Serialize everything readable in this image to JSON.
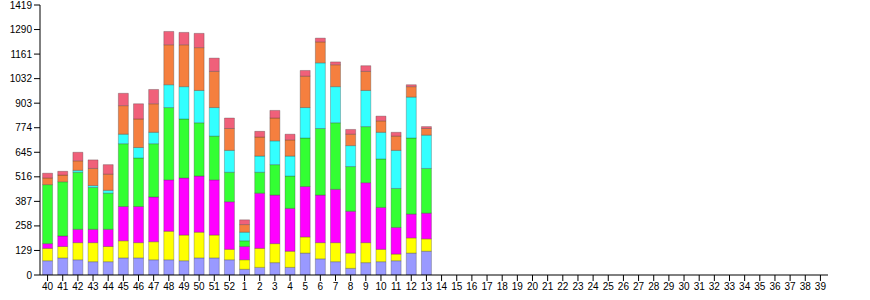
{
  "chart_data": {
    "type": "bar",
    "stacked": true,
    "grid": false,
    "categories": [
      "40",
      "41",
      "42",
      "43",
      "44",
      "45",
      "46",
      "47",
      "48",
      "49",
      "50",
      "51",
      "52",
      "1",
      "2",
      "3",
      "4",
      "5",
      "6",
      "7",
      "8",
      "9",
      "10",
      "11",
      "12",
      "13",
      "14",
      "15",
      "16",
      "17",
      "18",
      "19",
      "20",
      "21",
      "22",
      "23",
      "24",
      "25",
      "26",
      "27",
      "28",
      "29",
      "30",
      "31",
      "32",
      "33",
      "34",
      "35",
      "36",
      "37",
      "38",
      "39"
    ],
    "ylim": [
      0,
      1419
    ],
    "yticks": [
      0,
      129,
      258,
      387,
      516,
      645,
      774,
      903,
      1032,
      1161,
      1290,
      1419
    ],
    "series": [
      {
        "color": "#9999ff",
        "values": [
          75,
          90,
          80,
          70,
          70,
          90,
          90,
          80,
          80,
          75,
          90,
          90,
          80,
          30,
          40,
          65,
          40,
          115,
          85,
          70,
          35,
          65,
          70,
          75,
          115,
          125,
          null,
          null,
          null,
          null,
          null,
          null,
          null,
          null,
          null,
          null,
          null,
          null,
          null,
          null,
          null,
          null,
          null,
          null,
          null,
          null,
          null,
          null,
          null,
          null,
          null,
          null
        ]
      },
      {
        "color": "#ffff00",
        "values": [
          65,
          60,
          90,
          100,
          80,
          90,
          80,
          95,
          150,
          135,
          135,
          120,
          55,
          50,
          100,
          100,
          85,
          85,
          85,
          100,
          80,
          105,
          65,
          35,
          80,
          65,
          null,
          null,
          null,
          null,
          null,
          null,
          null,
          null,
          null,
          null,
          null,
          null,
          null,
          null,
          null,
          null,
          null,
          null,
          null,
          null,
          null,
          null,
          null,
          null,
          null,
          null
        ]
      },
      {
        "color": "#ff00ff",
        "values": [
          25,
          55,
          70,
          70,
          90,
          180,
          190,
          235,
          270,
          300,
          295,
          290,
          250,
          70,
          290,
          255,
          225,
          265,
          250,
          280,
          220,
          315,
          220,
          140,
          125,
          135,
          null,
          null,
          null,
          null,
          null,
          null,
          null,
          null,
          null,
          null,
          null,
          null,
          null,
          null,
          null,
          null,
          null,
          null,
          null,
          null,
          null,
          null,
          null,
          null,
          null,
          null
        ]
      },
      {
        "color": "#33ff33",
        "values": [
          310,
          285,
          300,
          220,
          190,
          330,
          255,
          280,
          380,
          310,
          280,
          230,
          155,
          30,
          110,
          160,
          170,
          255,
          350,
          350,
          235,
          295,
          255,
          205,
          400,
          235,
          null,
          null,
          null,
          null,
          null,
          null,
          null,
          null,
          null,
          null,
          null,
          null,
          null,
          null,
          null,
          null,
          null,
          null,
          null,
          null,
          null,
          null,
          null,
          null,
          null,
          null
        ]
      },
      {
        "color": "#33ffff",
        "values": [
          0,
          0,
          10,
          10,
          15,
          50,
          55,
          60,
          120,
          170,
          170,
          150,
          115,
          45,
          85,
          125,
          105,
          160,
          345,
          190,
          110,
          190,
          140,
          200,
          215,
          175,
          null,
          null,
          null,
          null,
          null,
          null,
          null,
          null,
          null,
          null,
          null,
          null,
          null,
          null,
          null,
          null,
          null,
          null,
          null,
          null,
          null,
          null,
          null,
          null,
          null,
          null
        ]
      },
      {
        "color": "#f57f3f",
        "values": [
          35,
          35,
          50,
          90,
          85,
          150,
          150,
          150,
          210,
          220,
          225,
          190,
          115,
          40,
          100,
          120,
          85,
          165,
          110,
          115,
          60,
          100,
          60,
          75,
          55,
          35,
          null,
          null,
          null,
          null,
          null,
          null,
          null,
          null,
          null,
          null,
          null,
          null,
          null,
          null,
          null,
          null,
          null,
          null,
          null,
          null,
          null,
          null,
          null,
          null,
          null,
          null
        ]
      },
      {
        "color": "#f0607a",
        "values": [
          25,
          20,
          45,
          45,
          50,
          65,
          80,
          75,
          70,
          65,
          75,
          70,
          55,
          25,
          30,
          40,
          30,
          30,
          20,
          15,
          25,
          30,
          25,
          20,
          10,
          10,
          null,
          null,
          null,
          null,
          null,
          null,
          null,
          null,
          null,
          null,
          null,
          null,
          null,
          null,
          null,
          null,
          null,
          null,
          null,
          null,
          null,
          null,
          null,
          null,
          null,
          null
        ]
      }
    ]
  }
}
